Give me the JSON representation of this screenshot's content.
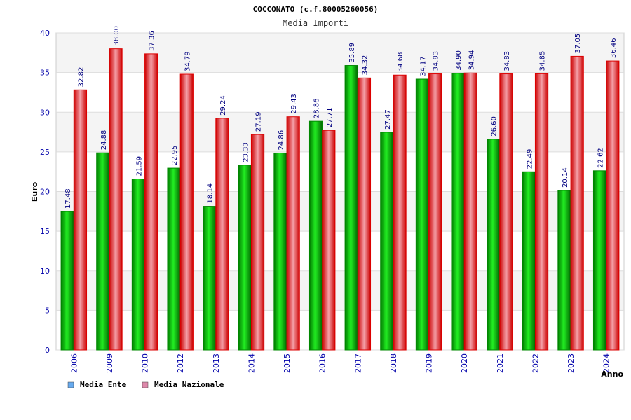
{
  "chart_data": {
    "type": "bar",
    "title": "COCCONATO (c.f.80005260056)",
    "subtitle": "Media Importi",
    "xlabel": "Anno",
    "ylabel": "Euro",
    "ylim": [
      0,
      40
    ],
    "yticks": [
      "0",
      "5",
      "10",
      "15",
      "20",
      "25",
      "30",
      "35",
      "40"
    ],
    "categories": [
      "2006",
      "2009",
      "2010",
      "2012",
      "2013",
      "2014",
      "2015",
      "2016",
      "2017",
      "2018",
      "2019",
      "2020",
      "2021",
      "2022",
      "2023",
      "2024"
    ],
    "series": [
      {
        "name": "Media Ente",
        "values": [
          17.48,
          24.88,
          21.59,
          22.95,
          18.14,
          23.33,
          24.86,
          28.86,
          35.89,
          27.47,
          34.17,
          34.9,
          26.6,
          22.49,
          20.14,
          22.62
        ],
        "labels": [
          "17.48",
          "24.88",
          "21.59",
          "22.95",
          "18.14",
          "23.33",
          "24.86",
          "28.86",
          "35.89",
          "27.47",
          "34.17",
          "34.90",
          "26.60",
          "22.49",
          "20.14",
          "22.62"
        ],
        "color": "#00aa00",
        "legend_color": "#66aaee"
      },
      {
        "name": "Media Nazionale",
        "values": [
          32.82,
          38.0,
          37.36,
          34.79,
          29.24,
          27.19,
          29.43,
          27.71,
          34.32,
          34.68,
          34.83,
          34.94,
          34.83,
          34.85,
          37.05,
          36.46
        ],
        "labels": [
          "32.82",
          "38.00",
          "37.36",
          "34.79",
          "29.24",
          "27.19",
          "29.43",
          "27.71",
          "34.32",
          "34.68",
          "34.83",
          "34.94",
          "34.83",
          "34.85",
          "37.05",
          "36.46"
        ],
        "color": "#ee0000",
        "legend_color": "#dd88aa"
      }
    ],
    "grid": true,
    "legend": "bottom-left"
  }
}
